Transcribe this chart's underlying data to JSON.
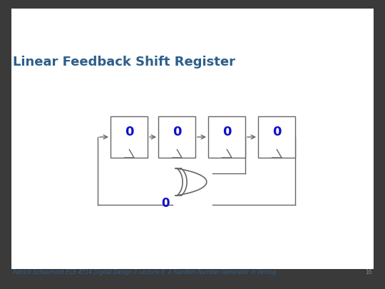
{
  "title": "Linear Feedback Shift Register",
  "title_color": "#2E5F8A",
  "title_fontsize": 13,
  "footer_text": "Patrick Schaumont ECE 4514 Digital Design II Lecture 6: A Random Number Generator in Verilog",
  "footer_page": "16",
  "footer_color": "#2E5F8A",
  "footer_fontsize": 5.5,
  "background_color": "#ffffff",
  "slide_bg": "#3a3a3a",
  "register_color": "#1010CC",
  "line_color": "#666666",
  "num_registers": 4,
  "zero_label": "0",
  "xor_label": "0"
}
